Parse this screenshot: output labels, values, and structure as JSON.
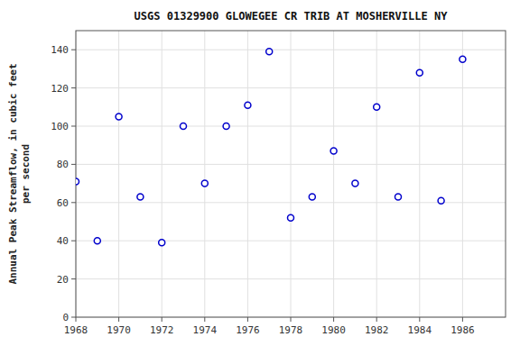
{
  "chart_data": {
    "type": "scatter",
    "title": "USGS 01329900 GLOWEGEE CR TRIB AT MOSHERVILLE NY",
    "y_label": "Annual Peak Streamflow, in cubic feet\nper second",
    "x": [
      1968,
      1969,
      1970,
      1971,
      1972,
      1973,
      1974,
      1975,
      1976,
      1977,
      1978,
      1979,
      1980,
      1981,
      1982,
      1983,
      1984,
      1985,
      1986
    ],
    "values": [
      71,
      40,
      105,
      63,
      39,
      100,
      70,
      100,
      111,
      139,
      52,
      63,
      87,
      70,
      110,
      63,
      128,
      61,
      135
    ],
    "xlim": [
      1968,
      1988
    ],
    "ylim": [
      0,
      150
    ],
    "xticks": [
      1968,
      1970,
      1972,
      1974,
      1976,
      1978,
      1980,
      1982,
      1984,
      1986
    ],
    "yticks": [
      0,
      20,
      40,
      60,
      80,
      100,
      120,
      140
    ],
    "color": "#0000cc",
    "marker": "circle",
    "grid": true
  }
}
